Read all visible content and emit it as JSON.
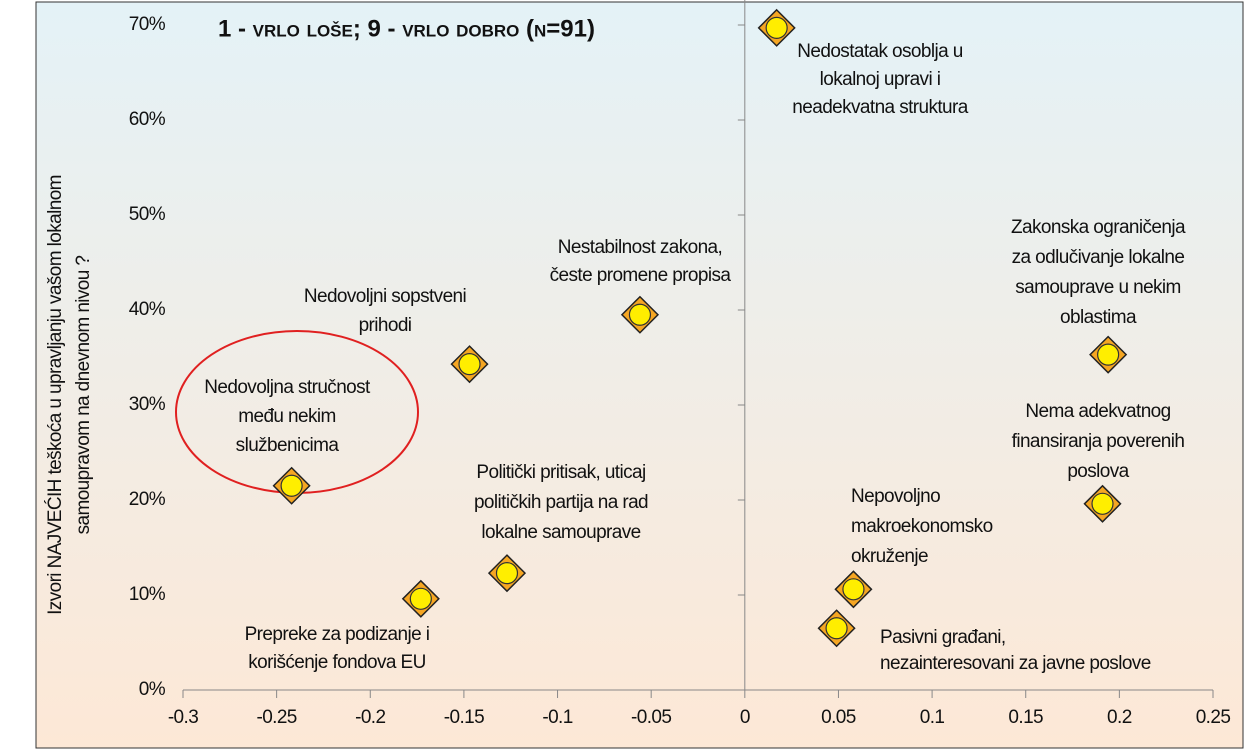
{
  "chart_data": {
    "type": "scatter",
    "title": "1 - vrlo loše; 9 - vrlo dobro (n=91)",
    "y_label": [
      "Izvori NAJVEĆIH teškoća u upravljanju vašom lokalnom",
      "samoupravom na dnevnom nivou ?"
    ],
    "x": [
      0.017,
      0.194,
      0.191,
      0.058,
      0.049,
      -0.056,
      -0.147,
      -0.242,
      -0.127,
      -0.173
    ],
    "values": [
      69.7,
      35.3,
      19.6,
      10.6,
      6.5,
      39.5,
      34.3,
      21.5,
      12.3,
      9.6
    ],
    "point_labels": [
      [
        "Nedostatak osoblja u",
        "lokalnoj upravi i",
        "neadekvatna struktura"
      ],
      [
        "Zakonska ograničenja",
        "za odlučivanje lokalne",
        "samouprave u nekim",
        "oblastima"
      ],
      [
        "Nema adekvatnog",
        "finansiranja poverenih",
        "poslova"
      ],
      [
        "Nepovoljno",
        "makroekonomsko",
        "okruženje"
      ],
      [
        "Pasivni građani,",
        "nezainteresovani za javne poslove"
      ],
      [
        "Nestabilnost zakona,",
        "česte promene propisa"
      ],
      [
        "Nedovoljni sopstveni",
        "prihodi"
      ],
      [
        "Nedovoljna stručnost",
        "među nekim",
        "službenicima"
      ],
      [
        "Politički pritisak, uticaj",
        "političkih partija na rad",
        "lokalne samouprave"
      ],
      [
        "Prepreke za podizanje i",
        "korišćenje fondova EU"
      ]
    ],
    "color": "#f5a623",
    "inner_color": "#ffee00",
    "xlim": [
      -0.3,
      0.25
    ],
    "xticks": [
      -0.3,
      -0.25,
      -0.2,
      -0.15,
      -0.1,
      -0.05,
      0,
      0.05,
      0.1,
      0.15,
      0.2,
      0.25
    ],
    "ylim": [
      0,
      70
    ],
    "yticks": [
      {
        "value": 0,
        "label": "0%"
      },
      {
        "value": 10,
        "label": "10%"
      },
      {
        "value": 20,
        "label": "20%"
      },
      {
        "value": 30,
        "label": "30%"
      },
      {
        "value": 40,
        "label": "40%"
      },
      {
        "value": 50,
        "label": "50%"
      },
      {
        "value": 60,
        "label": "60%"
      },
      {
        "value": 70,
        "label": "70%"
      }
    ]
  }
}
